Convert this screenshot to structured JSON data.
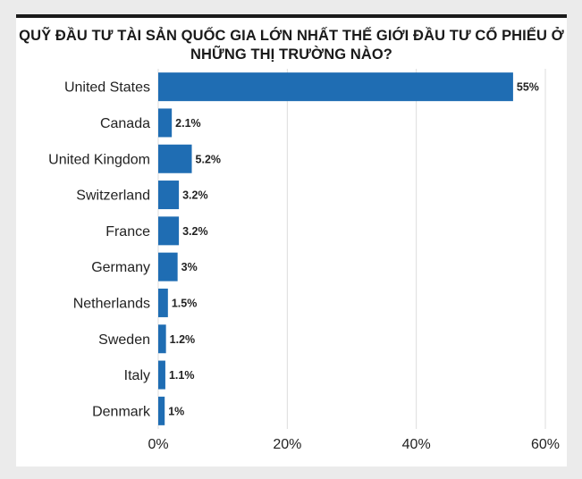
{
  "chart_data": {
    "type": "bar",
    "orientation": "horizontal",
    "title": "QUỸ ĐẦU TƯ TÀI SẢN QUỐC GIA LỚN NHẤT THẾ GIỚI ĐẦU TƯ CỔ PHIẾU Ở NHỮNG THỊ TRƯỜNG NÀO?",
    "categories": [
      "United States",
      "Canada",
      "United Kingdom",
      "Switzerland",
      "France",
      "Germany",
      "Netherlands",
      "Sweden",
      "Italy",
      "Denmark"
    ],
    "values": [
      55,
      2.1,
      5.2,
      3.2,
      3.2,
      3,
      1.5,
      1.2,
      1.1,
      1
    ],
    "value_labels": [
      "55%",
      "2.1%",
      "5.2%",
      "3.2%",
      "3.2%",
      "3%",
      "1.5%",
      "1.2%",
      "1.1%",
      "1%"
    ],
    "xlim": [
      0,
      60
    ],
    "xticks": [
      0,
      20,
      40,
      60
    ],
    "xtick_labels": [
      "0%",
      "20%",
      "40%",
      "60%"
    ],
    "grid": true,
    "bar_color": "#1f6db3",
    "grid_color": "#dddddd"
  }
}
